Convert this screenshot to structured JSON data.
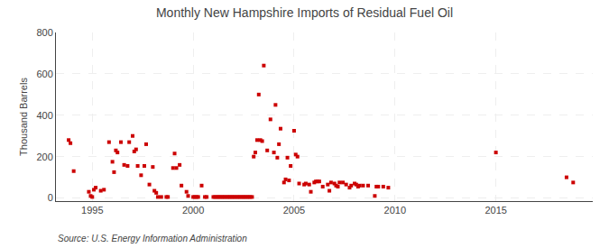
{
  "chart_data": {
    "type": "scatter",
    "title": "Monthly New Hampshire Imports of Residual Fuel Oil",
    "ylabel": "Thousand Barrels",
    "annotations": [
      "Source: U.S. Energy Information Administration"
    ],
    "color": "#cc0000",
    "marker": "square",
    "grid": true,
    "xlim": [
      1993.2,
      2019.8
    ],
    "ylim": [
      -15,
      800
    ],
    "xticks": [
      1995,
      2000,
      2005,
      2010,
      2015
    ],
    "yticks": [
      0,
      200,
      400,
      600,
      800
    ],
    "x": [
      1993.83,
      1993.92,
      1994.08,
      1994.83,
      1994.92,
      1995.0,
      1995.08,
      1995.17,
      1995.42,
      1995.58,
      1995.83,
      1996.0,
      1996.08,
      1996.17,
      1996.25,
      1996.42,
      1996.58,
      1996.75,
      1996.83,
      1997.0,
      1997.08,
      1997.17,
      1997.25,
      1997.42,
      1997.58,
      1997.67,
      1997.83,
      1998.0,
      1998.08,
      1998.17,
      1998.25,
      1998.42,
      1998.67,
      1998.75,
      1999.0,
      1999.08,
      1999.17,
      1999.33,
      1999.42,
      1999.67,
      1999.75,
      2000.0,
      2000.08,
      2000.17,
      2000.25,
      2000.42,
      2000.58,
      2000.67,
      2001.0,
      2001.08,
      2001.17,
      2001.25,
      2001.33,
      2001.42,
      2001.5,
      2001.58,
      2001.67,
      2001.75,
      2001.83,
      2001.92,
      2002.0,
      2002.08,
      2002.17,
      2002.25,
      2002.33,
      2002.42,
      2002.5,
      2002.58,
      2002.67,
      2002.75,
      2002.83,
      2002.92,
      2003.0,
      2003.08,
      2003.17,
      2003.25,
      2003.33,
      2003.42,
      2003.5,
      2003.67,
      2003.83,
      2004.0,
      2004.08,
      2004.17,
      2004.25,
      2004.33,
      2004.5,
      2004.58,
      2004.67,
      2004.75,
      2004.83,
      2005.0,
      2005.08,
      2005.17,
      2005.25,
      2005.5,
      2005.58,
      2005.75,
      2005.83,
      2006.0,
      2006.08,
      2006.17,
      2006.25,
      2006.42,
      2006.67,
      2006.75,
      2006.83,
      2007.0,
      2007.08,
      2007.17,
      2007.25,
      2007.42,
      2007.58,
      2007.75,
      2007.83,
      2008.0,
      2008.08,
      2008.17,
      2008.25,
      2008.42,
      2008.67,
      2009.0,
      2009.08,
      2009.17,
      2009.42,
      2009.67,
      2015.0,
      2018.5,
      2018.83
    ],
    "values": [
      280,
      265,
      130,
      30,
      10,
      5,
      40,
      50,
      35,
      40,
      270,
      175,
      125,
      230,
      220,
      270,
      160,
      155,
      270,
      300,
      225,
      235,
      155,
      110,
      155,
      260,
      65,
      150,
      35,
      25,
      5,
      5,
      5,
      5,
      145,
      215,
      145,
      160,
      60,
      30,
      10,
      5,
      5,
      5,
      5,
      60,
      5,
      5,
      5,
      5,
      5,
      5,
      5,
      5,
      5,
      5,
      5,
      5,
      5,
      5,
      5,
      5,
      5,
      5,
      5,
      5,
      5,
      5,
      5,
      5,
      5,
      5,
      200,
      220,
      280,
      500,
      280,
      275,
      640,
      230,
      380,
      220,
      450,
      195,
      260,
      335,
      75,
      90,
      195,
      85,
      155,
      325,
      210,
      200,
      70,
      65,
      70,
      65,
      30,
      75,
      80,
      80,
      80,
      55,
      65,
      35,
      75,
      70,
      60,
      55,
      75,
      75,
      65,
      50,
      60,
      70,
      65,
      55,
      60,
      60,
      60,
      10,
      55,
      55,
      55,
      50,
      220,
      100,
      75
    ]
  }
}
